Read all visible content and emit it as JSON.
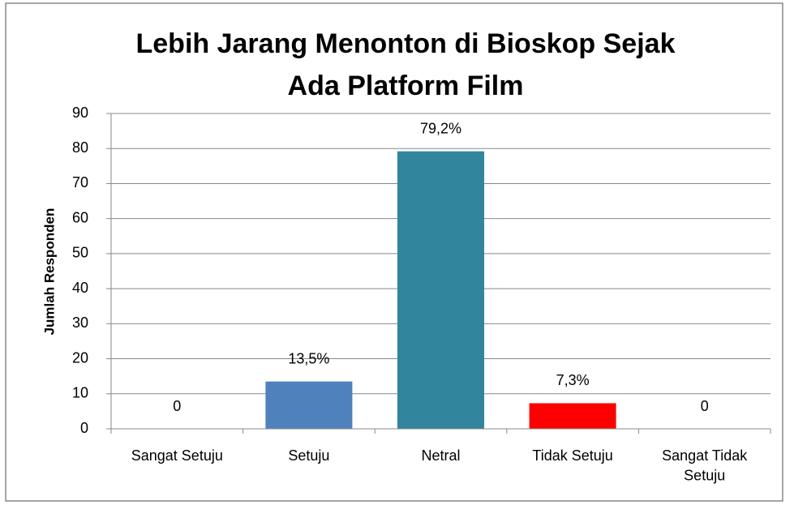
{
  "chart_data": {
    "type": "bar",
    "title": [
      "Lebih Jarang Menonton di Bioskop Sejak",
      "Ada Platform Film"
    ],
    "y_label": "Jumlah Responden",
    "categories": [
      "Sangat Setuju",
      "Setuju",
      "Netral",
      "Tidak Setuju",
      "Sangat Tidak Setuju"
    ],
    "values": [
      0,
      13.5,
      79.2,
      7.3,
      0
    ],
    "value_labels": [
      "0",
      "13,5%",
      "79,2%",
      "7,3%",
      "0"
    ],
    "colors": [
      "#4f81bd",
      "#4f81bd",
      "#31859c",
      "#ff0000",
      "#4f81bd"
    ],
    "ylim": [
      0,
      90
    ],
    "yticks": [
      0,
      10,
      20,
      30,
      40,
      50,
      60,
      70,
      80,
      90
    ],
    "grid": true
  }
}
